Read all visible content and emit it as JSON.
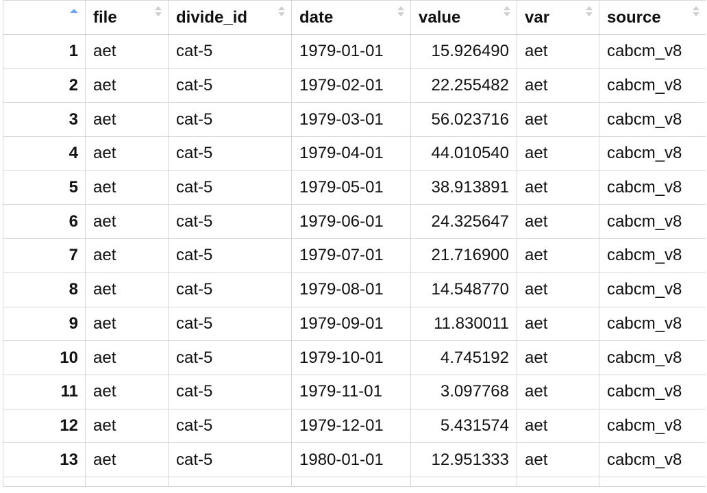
{
  "columns": [
    {
      "key": "rownum",
      "label": ""
    },
    {
      "key": "file",
      "label": "file"
    },
    {
      "key": "divide_id",
      "label": "divide_id"
    },
    {
      "key": "date",
      "label": "date"
    },
    {
      "key": "value",
      "label": "value"
    },
    {
      "key": "var",
      "label": "var"
    },
    {
      "key": "source",
      "label": "source"
    }
  ],
  "sort": {
    "column": "rownum",
    "direction": "ascending"
  },
  "rows": [
    {
      "rownum": "1",
      "file": "aet",
      "divide_id": "cat-5",
      "date": "1979-01-01",
      "value": "15.926490",
      "var": "aet",
      "source": "cabcm_v8"
    },
    {
      "rownum": "2",
      "file": "aet",
      "divide_id": "cat-5",
      "date": "1979-02-01",
      "value": "22.255482",
      "var": "aet",
      "source": "cabcm_v8"
    },
    {
      "rownum": "3",
      "file": "aet",
      "divide_id": "cat-5",
      "date": "1979-03-01",
      "value": "56.023716",
      "var": "aet",
      "source": "cabcm_v8"
    },
    {
      "rownum": "4",
      "file": "aet",
      "divide_id": "cat-5",
      "date": "1979-04-01",
      "value": "44.010540",
      "var": "aet",
      "source": "cabcm_v8"
    },
    {
      "rownum": "5",
      "file": "aet",
      "divide_id": "cat-5",
      "date": "1979-05-01",
      "value": "38.913891",
      "var": "aet",
      "source": "cabcm_v8"
    },
    {
      "rownum": "6",
      "file": "aet",
      "divide_id": "cat-5",
      "date": "1979-06-01",
      "value": "24.325647",
      "var": "aet",
      "source": "cabcm_v8"
    },
    {
      "rownum": "7",
      "file": "aet",
      "divide_id": "cat-5",
      "date": "1979-07-01",
      "value": "21.716900",
      "var": "aet",
      "source": "cabcm_v8"
    },
    {
      "rownum": "8",
      "file": "aet",
      "divide_id": "cat-5",
      "date": "1979-08-01",
      "value": "14.548770",
      "var": "aet",
      "source": "cabcm_v8"
    },
    {
      "rownum": "9",
      "file": "aet",
      "divide_id": "cat-5",
      "date": "1979-09-01",
      "value": "11.830011",
      "var": "aet",
      "source": "cabcm_v8"
    },
    {
      "rownum": "10",
      "file": "aet",
      "divide_id": "cat-5",
      "date": "1979-10-01",
      "value": "4.745192",
      "var": "aet",
      "source": "cabcm_v8"
    },
    {
      "rownum": "11",
      "file": "aet",
      "divide_id": "cat-5",
      "date": "1979-11-01",
      "value": "3.097768",
      "var": "aet",
      "source": "cabcm_v8"
    },
    {
      "rownum": "12",
      "file": "aet",
      "divide_id": "cat-5",
      "date": "1979-12-01",
      "value": "5.431574",
      "var": "aet",
      "source": "cabcm_v8"
    },
    {
      "rownum": "13",
      "file": "aet",
      "divide_id": "cat-5",
      "date": "1980-01-01",
      "value": "12.951333",
      "var": "aet",
      "source": "cabcm_v8"
    }
  ],
  "colors": {
    "sort_active": "#6aa3e6",
    "sort_inactive": "#cfcfcf",
    "grid_line": "#d6d6d6"
  }
}
